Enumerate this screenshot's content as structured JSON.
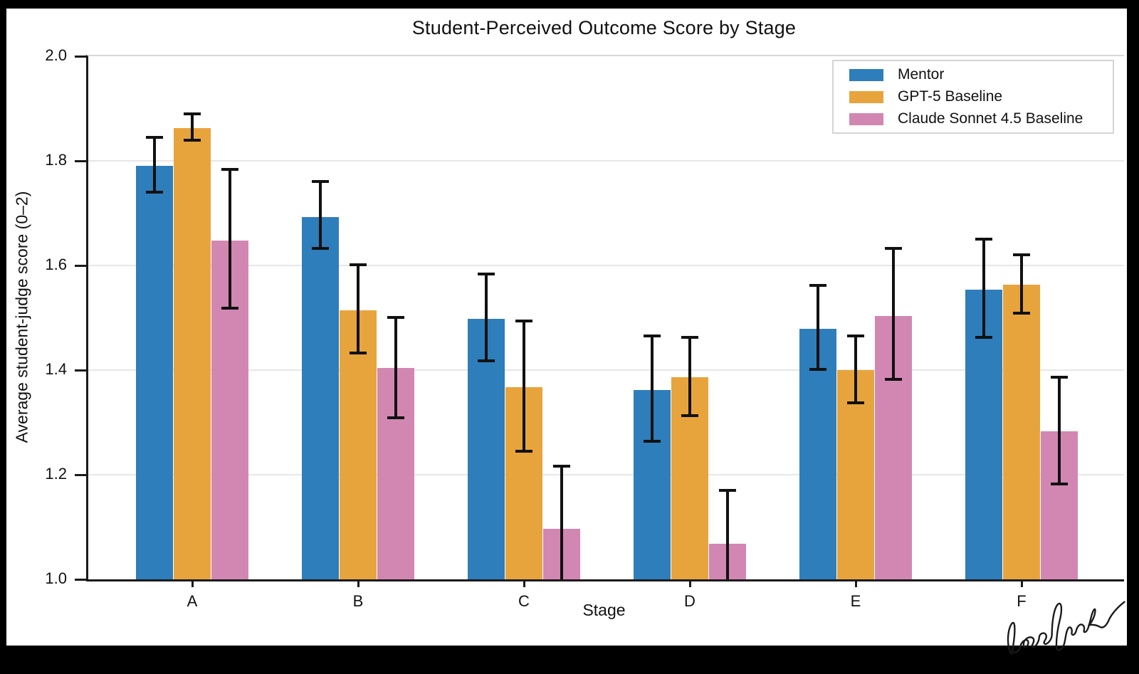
{
  "chart_data": {
    "type": "bar",
    "title": "Student-Perceived Outcome Score by Stage",
    "xlabel": "Stage",
    "ylabel": "Average student-judge score (0–2)",
    "categories": [
      "A",
      "B",
      "C",
      "D",
      "E",
      "F"
    ],
    "ylim": [
      1.0,
      2.0
    ],
    "yticks": [
      1.0,
      1.2,
      1.4,
      1.6,
      1.8,
      2.0
    ],
    "grid": "horizontal",
    "legend_position": "upper right",
    "error_bars": true,
    "series": [
      {
        "name": "Mentor",
        "color": "#2e7ebc",
        "values": [
          1.79,
          1.693,
          1.498,
          1.362,
          1.479,
          1.554
        ],
        "err_low": [
          1.74,
          1.632,
          1.418,
          1.264,
          1.401,
          1.463
        ],
        "err_high": [
          1.845,
          1.76,
          1.584,
          1.465,
          1.562,
          1.65
        ],
        "err_low_clipped": [
          false,
          false,
          false,
          false,
          false,
          false
        ]
      },
      {
        "name": "GPT-5 Baseline",
        "color": "#e8a43c",
        "values": [
          1.862,
          1.514,
          1.368,
          1.387,
          1.4,
          1.563
        ],
        "err_low": [
          1.839,
          1.432,
          1.245,
          1.313,
          1.337,
          1.509
        ],
        "err_high": [
          1.89,
          1.601,
          1.494,
          1.463,
          1.465,
          1.62
        ],
        "err_low_clipped": [
          false,
          false,
          false,
          false,
          false,
          false
        ]
      },
      {
        "name": "Claude Sonnet 4.5 Baseline",
        "color": "#d287b2",
        "values": [
          1.648,
          1.404,
          1.097,
          1.068,
          1.504,
          1.283
        ],
        "err_low": [
          1.519,
          1.309,
          1.0,
          1.0,
          1.382,
          1.182
        ],
        "err_high": [
          1.783,
          1.501,
          1.216,
          1.17,
          1.632,
          1.387
        ],
        "err_low_clipped": [
          false,
          false,
          true,
          true,
          false,
          false
        ]
      }
    ]
  },
  "signature": {
    "text": "lossfunk"
  }
}
